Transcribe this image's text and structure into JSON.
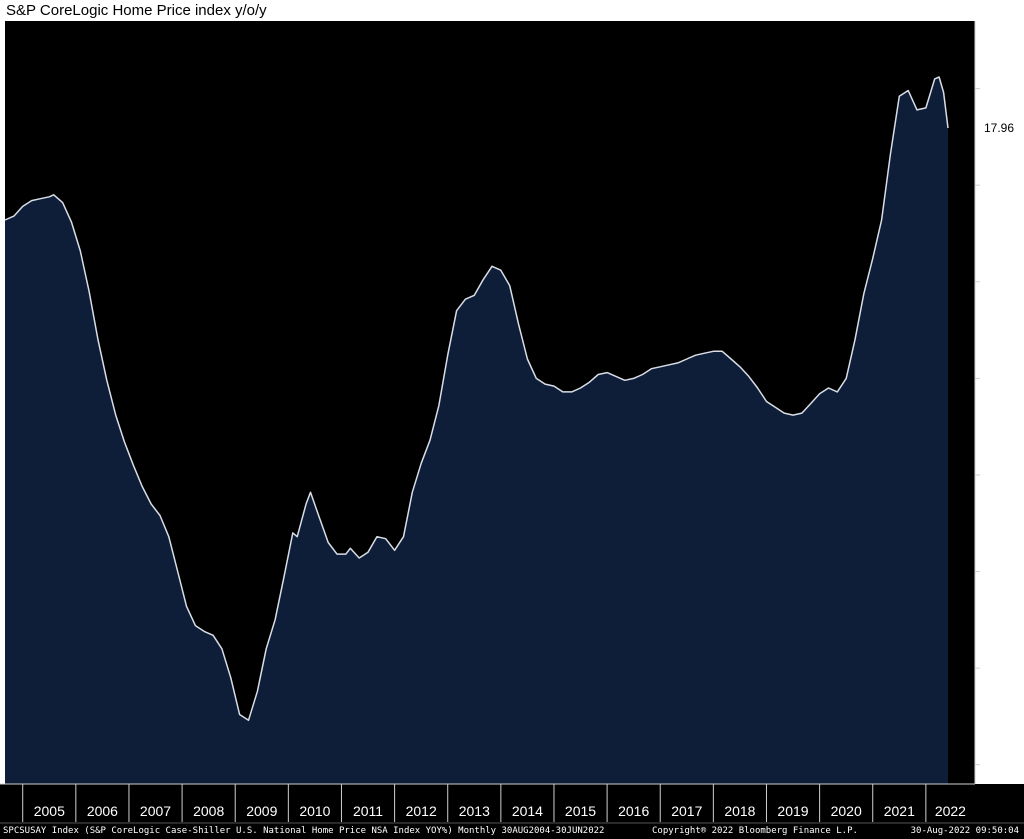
{
  "chart_data": {
    "type": "area",
    "title": "S&P CoreLogic Home Price index y/o/y",
    "xlabel": "",
    "ylabel": "",
    "ylim": [
      -16,
      23.5
    ],
    "y_ticks": [
      20,
      15,
      10,
      5,
      0,
      -5,
      -10,
      -15
    ],
    "x_range": [
      "2004-09",
      "2022-06"
    ],
    "x_tick_labels": [
      "2005",
      "2006",
      "2007",
      "2008",
      "2009",
      "2010",
      "2011",
      "2012",
      "2013",
      "2014",
      "2015",
      "2016",
      "2017",
      "2018",
      "2019",
      "2020",
      "2021",
      "2022"
    ],
    "grid": false,
    "legend": "none",
    "series": [
      {
        "points": [
          [
            "2004-09",
            13.2
          ],
          [
            "2004-11",
            13.4
          ],
          [
            "2005-01",
            13.9
          ],
          [
            "2005-03",
            14.2
          ],
          [
            "2005-05",
            14.3
          ],
          [
            "2005-07",
            14.4
          ],
          [
            "2005-08",
            14.5
          ],
          [
            "2005-10",
            14.1
          ],
          [
            "2005-12",
            13.1
          ],
          [
            "2006-02",
            11.6
          ],
          [
            "2006-04",
            9.5
          ],
          [
            "2006-06",
            7.0
          ],
          [
            "2006-08",
            4.9
          ],
          [
            "2006-10",
            3.1
          ],
          [
            "2006-12",
            1.7
          ],
          [
            "2007-02",
            0.5
          ],
          [
            "2007-04",
            -0.6
          ],
          [
            "2007-06",
            -1.5
          ],
          [
            "2007-08",
            -2.1
          ],
          [
            "2007-10",
            -3.2
          ],
          [
            "2007-12",
            -5.0
          ],
          [
            "2008-02",
            -6.8
          ],
          [
            "2008-04",
            -7.8
          ],
          [
            "2008-06",
            -8.1
          ],
          [
            "2008-08",
            -8.3
          ],
          [
            "2008-10",
            -9.0
          ],
          [
            "2008-12",
            -10.5
          ],
          [
            "2009-02",
            -12.4
          ],
          [
            "2009-04",
            -12.7
          ],
          [
            "2009-06",
            -11.2
          ],
          [
            "2009-08",
            -9.0
          ],
          [
            "2009-10",
            -7.5
          ],
          [
            "2009-12",
            -5.3
          ],
          [
            "2010-02",
            -3.0
          ],
          [
            "2010-03",
            -3.2
          ],
          [
            "2010-05",
            -1.5
          ],
          [
            "2010-06",
            -0.9
          ],
          [
            "2010-08",
            -2.2
          ],
          [
            "2010-10",
            -3.5
          ],
          [
            "2010-12",
            -4.1
          ],
          [
            "2011-02",
            -4.1
          ],
          [
            "2011-03",
            -3.8
          ],
          [
            "2011-05",
            -4.3
          ],
          [
            "2011-07",
            -4.0
          ],
          [
            "2011-09",
            -3.2
          ],
          [
            "2011-11",
            -3.3
          ],
          [
            "2012-01",
            -3.9
          ],
          [
            "2012-03",
            -3.2
          ],
          [
            "2012-05",
            -0.9
          ],
          [
            "2012-07",
            0.6
          ],
          [
            "2012-09",
            1.8
          ],
          [
            "2012-11",
            3.6
          ],
          [
            "2013-01",
            6.2
          ],
          [
            "2013-03",
            8.5
          ],
          [
            "2013-05",
            9.1
          ],
          [
            "2013-07",
            9.3
          ],
          [
            "2013-09",
            10.1
          ],
          [
            "2013-11",
            10.8
          ],
          [
            "2014-01",
            10.6
          ],
          [
            "2014-03",
            9.8
          ],
          [
            "2014-05",
            7.8
          ],
          [
            "2014-07",
            6.0
          ],
          [
            "2014-09",
            5.0
          ],
          [
            "2014-11",
            4.7
          ],
          [
            "2015-01",
            4.6
          ],
          [
            "2015-03",
            4.3
          ],
          [
            "2015-05",
            4.3
          ],
          [
            "2015-07",
            4.5
          ],
          [
            "2015-09",
            4.8
          ],
          [
            "2015-11",
            5.2
          ],
          [
            "2016-01",
            5.3
          ],
          [
            "2016-03",
            5.1
          ],
          [
            "2016-05",
            4.9
          ],
          [
            "2016-07",
            5.0
          ],
          [
            "2016-09",
            5.2
          ],
          [
            "2016-11",
            5.5
          ],
          [
            "2017-01",
            5.6
          ],
          [
            "2017-03",
            5.7
          ],
          [
            "2017-05",
            5.8
          ],
          [
            "2017-07",
            6.0
          ],
          [
            "2017-09",
            6.2
          ],
          [
            "2017-11",
            6.3
          ],
          [
            "2018-01",
            6.4
          ],
          [
            "2018-03",
            6.4
          ],
          [
            "2018-05",
            6.0
          ],
          [
            "2018-07",
            5.6
          ],
          [
            "2018-09",
            5.1
          ],
          [
            "2018-11",
            4.5
          ],
          [
            "2019-01",
            3.8
          ],
          [
            "2019-03",
            3.5
          ],
          [
            "2019-05",
            3.2
          ],
          [
            "2019-07",
            3.1
          ],
          [
            "2019-09",
            3.2
          ],
          [
            "2019-11",
            3.7
          ],
          [
            "2020-01",
            4.2
          ],
          [
            "2020-03",
            4.5
          ],
          [
            "2020-05",
            4.3
          ],
          [
            "2020-07",
            5.0
          ],
          [
            "2020-09",
            7.0
          ],
          [
            "2020-11",
            9.4
          ],
          [
            "2021-01",
            11.2
          ],
          [
            "2021-03",
            13.2
          ],
          [
            "2021-05",
            16.6
          ],
          [
            "2021-07",
            19.6
          ],
          [
            "2021-09",
            19.9
          ],
          [
            "2021-11",
            18.9
          ],
          [
            "2022-01",
            19.0
          ],
          [
            "2022-03",
            20.5
          ],
          [
            "2022-04",
            20.6
          ],
          [
            "2022-05",
            19.8
          ],
          [
            "2022-06",
            17.96
          ]
        ]
      }
    ],
    "last_value_label": "17.96"
  },
  "footer": {
    "left": "SPCSUSAY Index (S&P CoreLogic Case-Shiller U.S. National Home Price NSA Index YOY%)  Monthly 30AUG2004-30JUN2022",
    "center": "Copyright® 2022 Bloomberg Finance L.P.",
    "right": "30-Aug-2022 09:50:04"
  },
  "colors": {
    "background": "#000000",
    "area_fill": "#0e1e38",
    "line": "#d9dde6",
    "axis": "#cfcfcf",
    "label_box": "#ffffff"
  }
}
